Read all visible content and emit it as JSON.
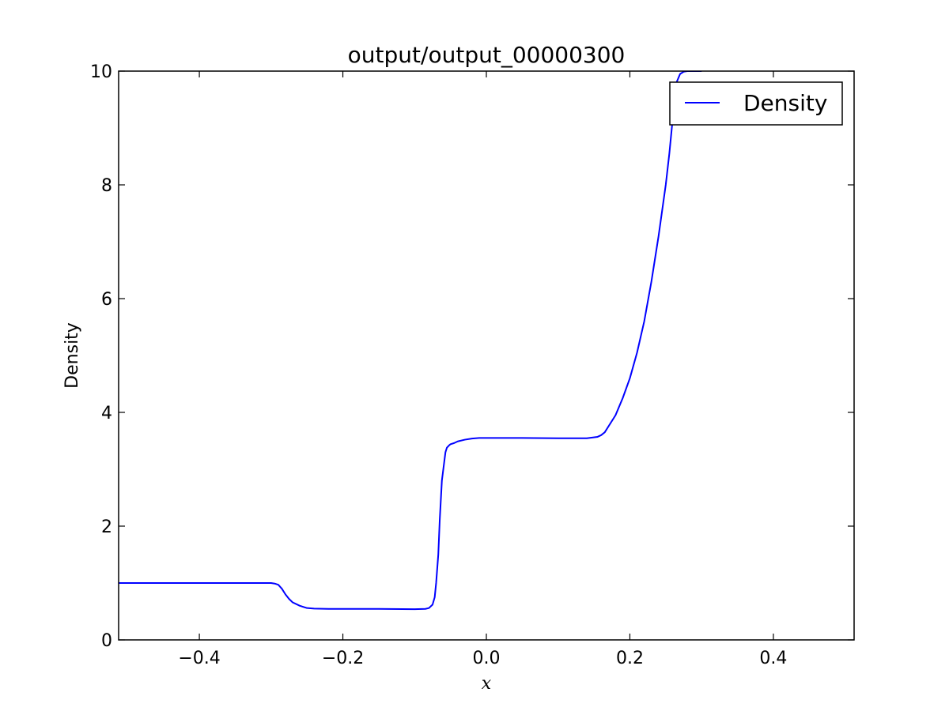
{
  "chart_data": {
    "type": "line",
    "title": "output/output_00000300",
    "xlabel": "x",
    "ylabel": "Density",
    "xlim": [
      -0.5125,
      0.5125
    ],
    "ylim": [
      0,
      10
    ],
    "xticks": [
      -0.4,
      -0.2,
      0.0,
      0.2,
      0.4
    ],
    "xtick_labels": [
      "−0.4",
      "−0.2",
      "0.0",
      "0.2",
      "0.4"
    ],
    "yticks": [
      0,
      2,
      4,
      6,
      8,
      10
    ],
    "ytick_labels": [
      "0",
      "2",
      "4",
      "6",
      "8",
      "10"
    ],
    "grid": false,
    "legend": {
      "position": "top-right"
    },
    "series": [
      {
        "name": "Density",
        "color": "#0000ff",
        "x": [
          -0.5125,
          -0.45,
          -0.4,
          -0.35,
          -0.31,
          -0.3,
          -0.295,
          -0.29,
          -0.285,
          -0.28,
          -0.275,
          -0.27,
          -0.26,
          -0.25,
          -0.24,
          -0.22,
          -0.2,
          -0.15,
          -0.1,
          -0.085,
          -0.08,
          -0.075,
          -0.072,
          -0.07,
          -0.067,
          -0.065,
          -0.062,
          -0.06,
          -0.057,
          -0.055,
          -0.052,
          -0.05,
          -0.045,
          -0.04,
          -0.03,
          -0.02,
          -0.01,
          0.0,
          0.05,
          0.1,
          0.14,
          0.155,
          0.16,
          0.165,
          0.17,
          0.18,
          0.19,
          0.2,
          0.21,
          0.22,
          0.23,
          0.24,
          0.25,
          0.255,
          0.26,
          0.265,
          0.27,
          0.275,
          0.28,
          0.285,
          0.29,
          0.3
        ],
        "y": [
          1.0,
          1.0,
          1.0,
          1.0,
          1.0,
          1.0,
          0.99,
          0.97,
          0.9,
          0.8,
          0.72,
          0.66,
          0.6,
          0.56,
          0.55,
          0.545,
          0.545,
          0.545,
          0.54,
          0.545,
          0.56,
          0.62,
          0.75,
          1.0,
          1.5,
          2.1,
          2.8,
          3.0,
          3.3,
          3.38,
          3.42,
          3.44,
          3.46,
          3.49,
          3.52,
          3.54,
          3.55,
          3.55,
          3.55,
          3.545,
          3.545,
          3.57,
          3.6,
          3.65,
          3.75,
          3.95,
          4.25,
          4.6,
          5.05,
          5.6,
          6.3,
          7.1,
          8.0,
          8.55,
          9.2,
          9.8,
          9.95,
          9.99,
          10.0,
          10.0,
          10.0,
          10.0
        ]
      }
    ]
  }
}
